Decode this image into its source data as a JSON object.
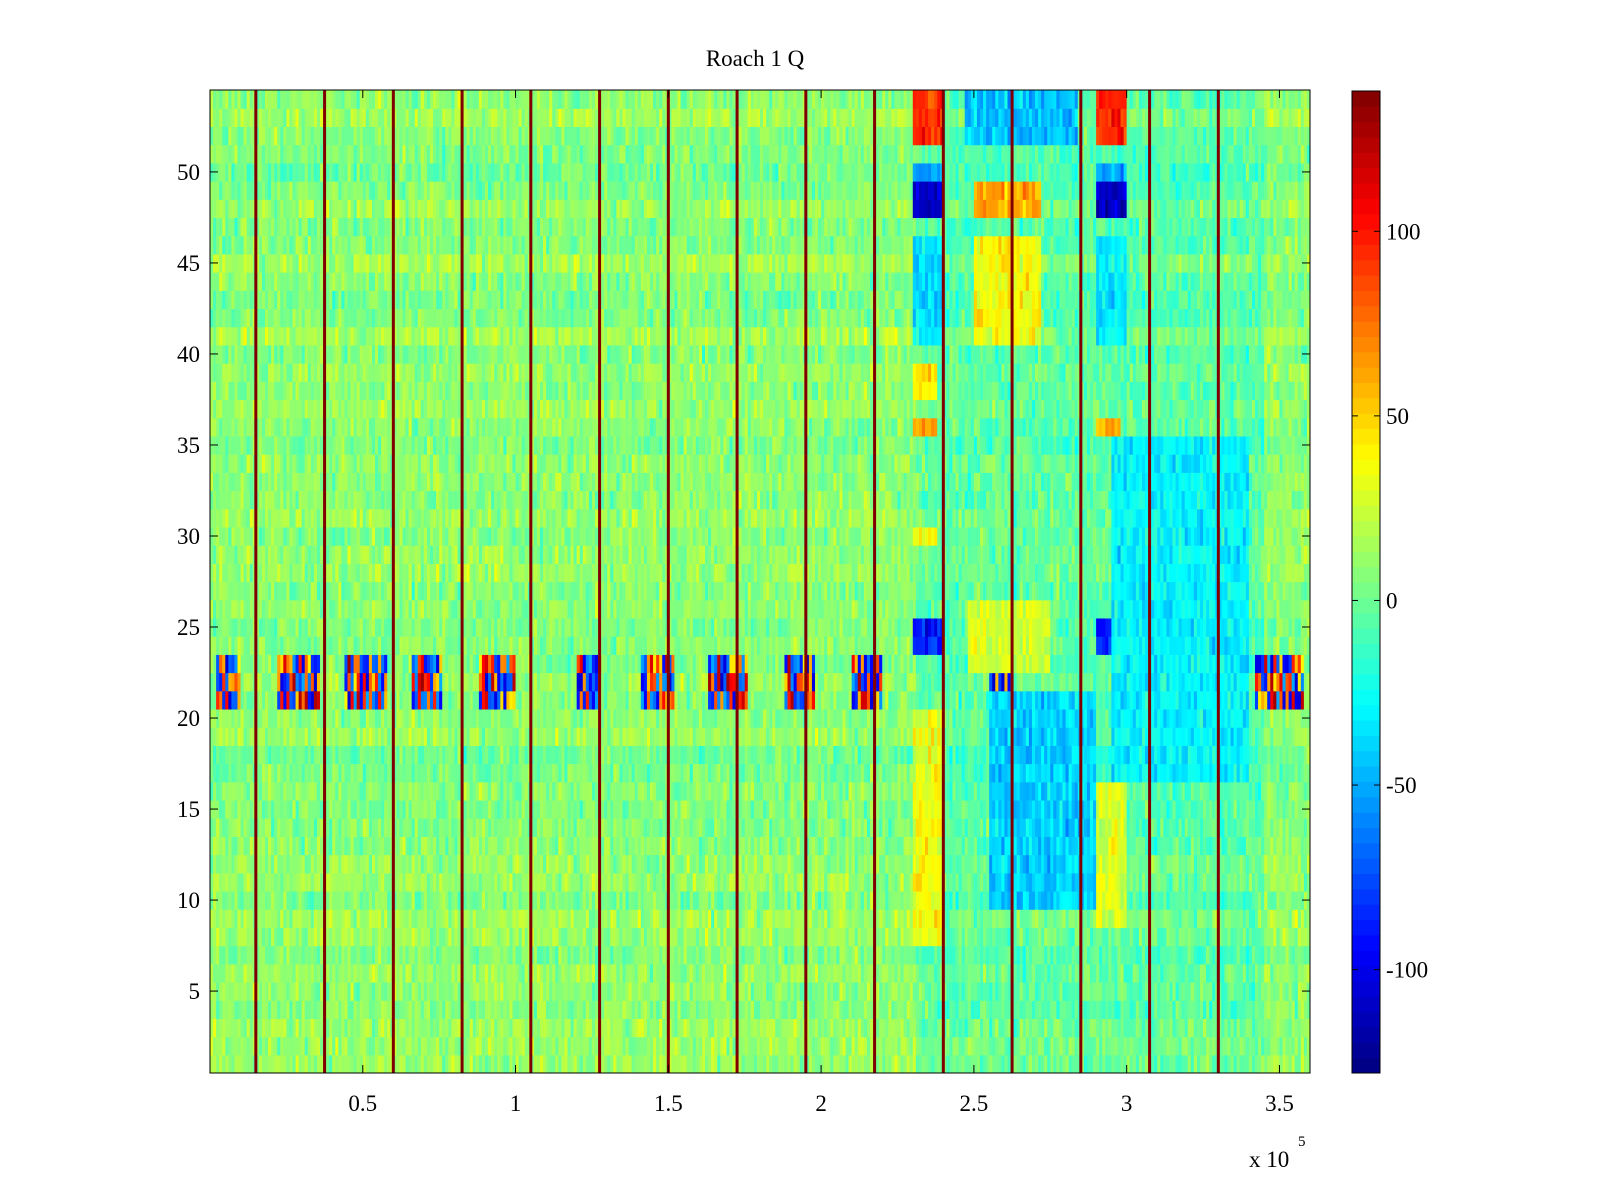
{
  "chart_data": {
    "type": "heatmap",
    "title": "Roach 1 Q",
    "xlabel": "",
    "ylabel": "",
    "x_multiplier_label": {
      "base": "x 10",
      "exponent": "5"
    },
    "xlim": [
      0,
      360000
    ],
    "ylim": [
      0.5,
      54.5
    ],
    "x_ticks": [
      {
        "value": 50000,
        "label": "0.5"
      },
      {
        "value": 100000,
        "label": "1"
      },
      {
        "value": 150000,
        "label": "1.5"
      },
      {
        "value": 200000,
        "label": "2"
      },
      {
        "value": 250000,
        "label": "2.5"
      },
      {
        "value": 300000,
        "label": "3"
      },
      {
        "value": 350000,
        "label": "3.5"
      }
    ],
    "y_ticks": [
      {
        "value": 5,
        "label": "5"
      },
      {
        "value": 10,
        "label": "10"
      },
      {
        "value": 15,
        "label": "15"
      },
      {
        "value": 20,
        "label": "20"
      },
      {
        "value": 25,
        "label": "25"
      },
      {
        "value": 30,
        "label": "30"
      },
      {
        "value": 35,
        "label": "35"
      },
      {
        "value": 40,
        "label": "40"
      },
      {
        "value": 45,
        "label": "45"
      },
      {
        "value": 50,
        "label": "50"
      }
    ],
    "rows": 54,
    "colormap": "jet",
    "clim": [
      -128,
      138
    ],
    "colorbar_ticks": [
      {
        "value": 100,
        "label": "100"
      },
      {
        "value": 50,
        "label": "50"
      },
      {
        "value": 0,
        "label": "0"
      },
      {
        "value": -50,
        "label": "-50"
      },
      {
        "value": -100,
        "label": "-100"
      }
    ],
    "vertical_stripe_x": [
      15000,
      37500,
      60000,
      82500,
      105000,
      127500,
      150000,
      172500,
      195000,
      217500,
      240000,
      262500,
      285000,
      307500,
      330000
    ],
    "noisy_band_rows": [
      21,
      22,
      23
    ],
    "noisy_band_clusters_x": [
      [
        2000,
        10000
      ],
      [
        22000,
        36000
      ],
      [
        44000,
        58000
      ],
      [
        66000,
        76000
      ],
      [
        88000,
        100000
      ],
      [
        120000,
        128000
      ],
      [
        141000,
        152000
      ],
      [
        163000,
        176000
      ],
      [
        188000,
        198000
      ],
      [
        210000,
        220000
      ],
      [
        255000,
        262000
      ],
      [
        298000,
        312000
      ],
      [
        320000,
        334000
      ],
      [
        342000,
        358000
      ]
    ],
    "features": [
      {
        "x": [
          230000,
          240000
        ],
        "rows": [
          52,
          54
        ],
        "value": 95
      },
      {
        "x": [
          290000,
          300000
        ],
        "rows": [
          52,
          54
        ],
        "value": 95
      },
      {
        "x": [
          247000,
          284000
        ],
        "rows": [
          52,
          54
        ],
        "value": -45
      },
      {
        "x": [
          230000,
          240000
        ],
        "rows": [
          48,
          49
        ],
        "value": -105
      },
      {
        "x": [
          290000,
          300000
        ],
        "rows": [
          48,
          49
        ],
        "value": -110
      },
      {
        "x": [
          230000,
          240000
        ],
        "rows": [
          50,
          50
        ],
        "value": -55
      },
      {
        "x": [
          290000,
          300000
        ],
        "rows": [
          50,
          50
        ],
        "value": -55
      },
      {
        "x": [
          250000,
          272000
        ],
        "rows": [
          48,
          49
        ],
        "value": 60
      },
      {
        "x": [
          250000,
          272000
        ],
        "rows": [
          41,
          46
        ],
        "value": 38
      },
      {
        "x": [
          230000,
          240000
        ],
        "rows": [
          41,
          46
        ],
        "value": -35
      },
      {
        "x": [
          290000,
          300000
        ],
        "rows": [
          41,
          46
        ],
        "value": -35
      },
      {
        "x": [
          230000,
          238000
        ],
        "rows": [
          36,
          36
        ],
        "value": 60
      },
      {
        "x": [
          290000,
          298000
        ],
        "rows": [
          36,
          36
        ],
        "value": 60
      },
      {
        "x": [
          230000,
          238000
        ],
        "rows": [
          38,
          39
        ],
        "value": 45
      },
      {
        "x": [
          230000,
          238000
        ],
        "rows": [
          30,
          30
        ],
        "value": 40
      },
      {
        "x": [
          230000,
          240000
        ],
        "rows": [
          24,
          25
        ],
        "value": -90
      },
      {
        "x": [
          290000,
          300000
        ],
        "rows": [
          24,
          25
        ],
        "value": -90
      },
      {
        "x": [
          248000,
          275000
        ],
        "rows": [
          23,
          26
        ],
        "value": 28
      },
      {
        "x": [
          230000,
          240000
        ],
        "rows": [
          8,
          20
        ],
        "value": 35
      },
      {
        "x": [
          290000,
          300000
        ],
        "rows": [
          9,
          16
        ],
        "value": 30
      },
      {
        "x": [
          255000,
          290000
        ],
        "rows": [
          10,
          21
        ],
        "value": -40
      },
      {
        "x": [
          295000,
          340000
        ],
        "rows": [
          17,
          35
        ],
        "value": -30
      }
    ]
  }
}
